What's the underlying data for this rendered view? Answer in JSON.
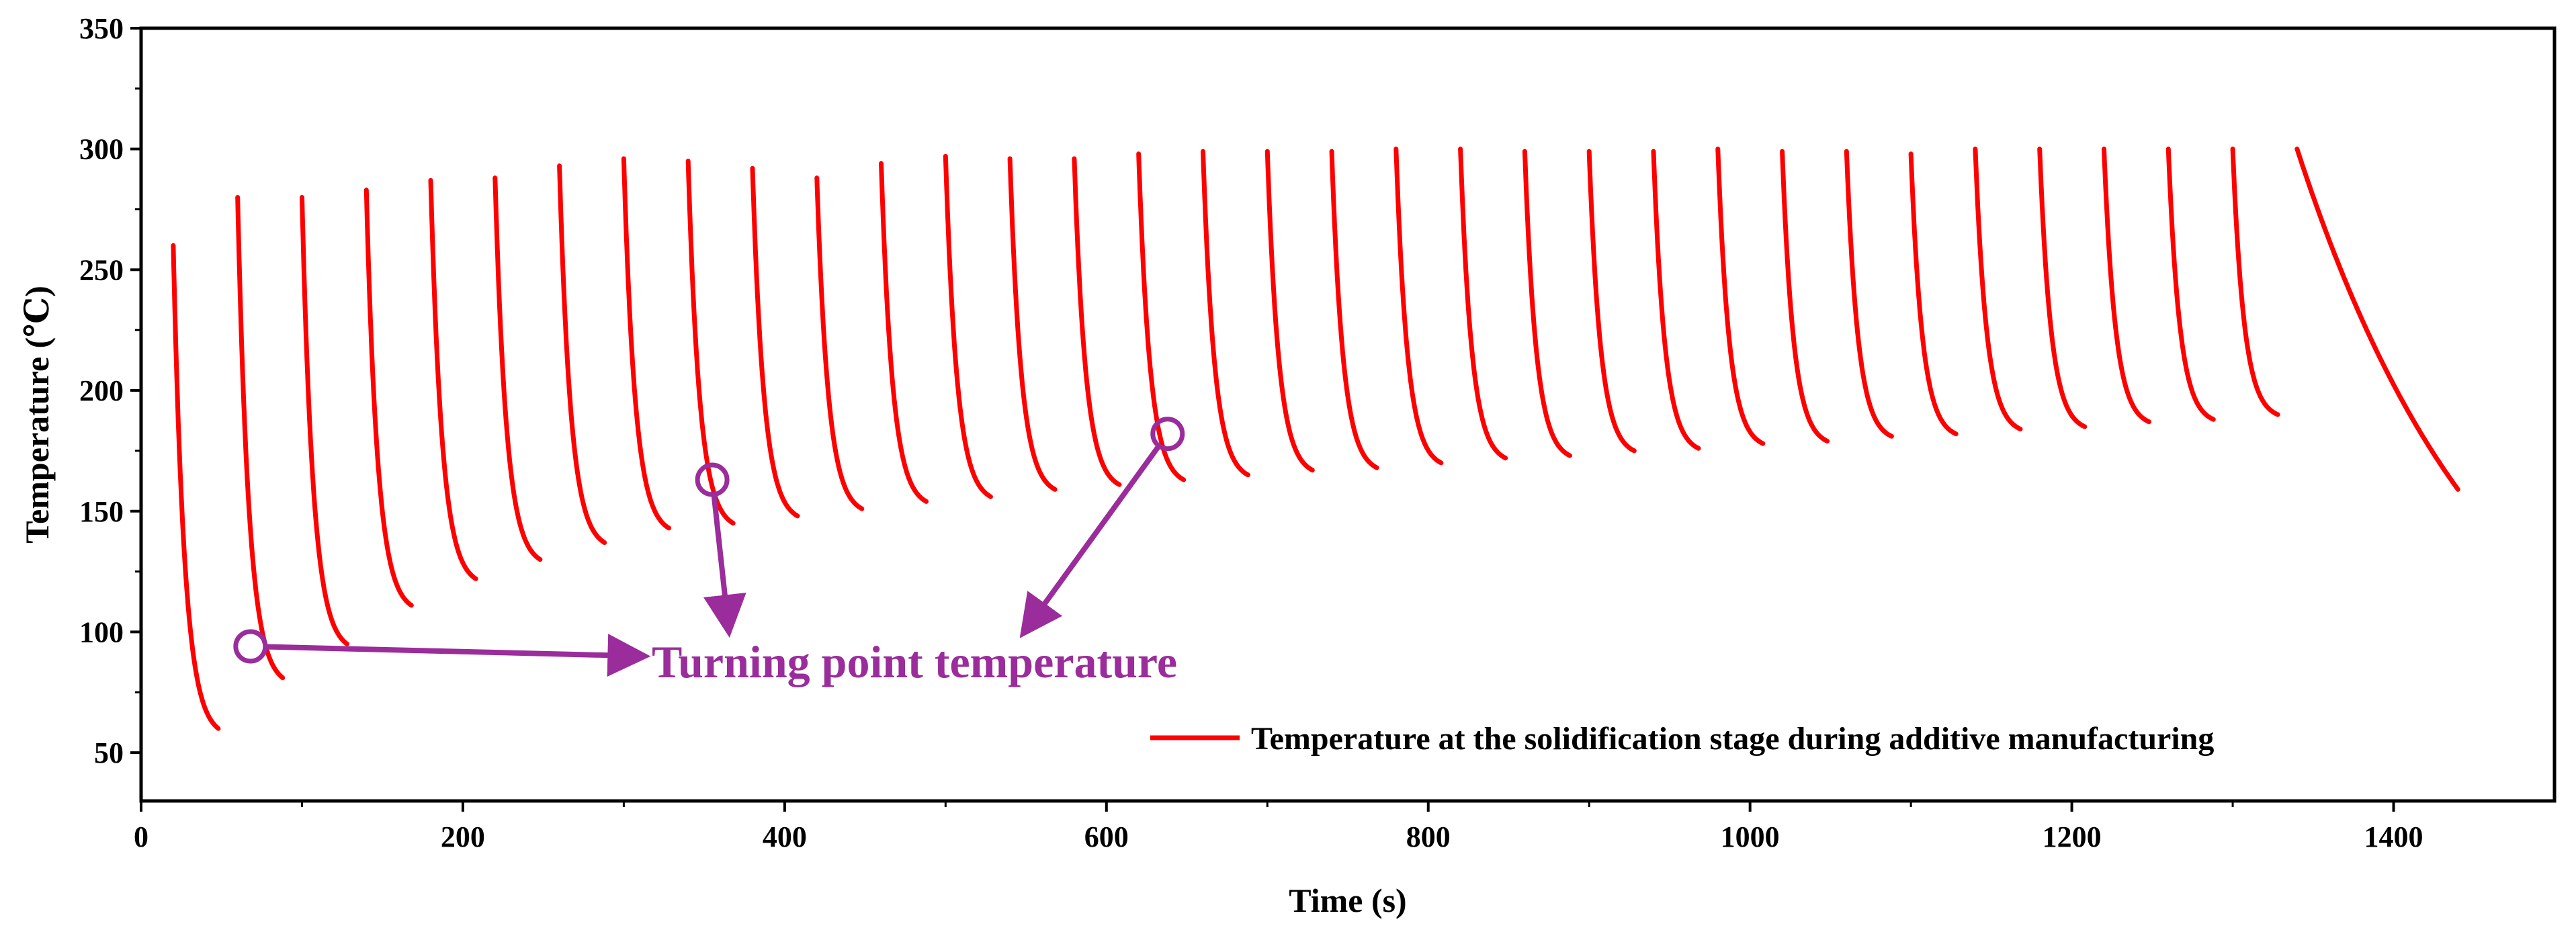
{
  "chart_data": {
    "type": "line",
    "title": "",
    "xlabel": "Time (s)",
    "ylabel": "Temperature (℃)",
    "xlim": [
      0,
      1500
    ],
    "ylim": [
      30,
      350
    ],
    "xticks": [
      0,
      200,
      400,
      600,
      800,
      1000,
      1200,
      1400
    ],
    "yticks": [
      50,
      100,
      150,
      200,
      250,
      300,
      350
    ],
    "grid": false,
    "legend": {
      "position": "bottom-right",
      "entries": [
        "Temperature at the solidification stage during additive manufacturing"
      ]
    },
    "colors": {
      "series": "#ff0000",
      "annotation": "#9b2c9b",
      "axis": "#000000"
    },
    "series": [
      {
        "name": "Temperature at the solidification stage during additive manufacturing",
        "segments": [
          {
            "t0": 20,
            "peak": 260,
            "end_t": 48,
            "end_temp": 60
          },
          {
            "t0": 60,
            "peak": 280,
            "end_t": 88,
            "end_temp": 81
          },
          {
            "t0": 100,
            "peak": 280,
            "end_t": 128,
            "end_temp": 95
          },
          {
            "t0": 140,
            "peak": 283,
            "end_t": 168,
            "end_temp": 111
          },
          {
            "t0": 180,
            "peak": 287,
            "end_t": 208,
            "end_temp": 122
          },
          {
            "t0": 220,
            "peak": 288,
            "end_t": 248,
            "end_temp": 130
          },
          {
            "t0": 260,
            "peak": 293,
            "end_t": 288,
            "end_temp": 137
          },
          {
            "t0": 300,
            "peak": 296,
            "end_t": 328,
            "end_temp": 143
          },
          {
            "t0": 340,
            "peak": 295,
            "end_t": 368,
            "end_temp": 145
          },
          {
            "t0": 380,
            "peak": 292,
            "end_t": 408,
            "end_temp": 148
          },
          {
            "t0": 420,
            "peak": 288,
            "end_t": 448,
            "end_temp": 151
          },
          {
            "t0": 460,
            "peak": 294,
            "end_t": 488,
            "end_temp": 154
          },
          {
            "t0": 500,
            "peak": 297,
            "end_t": 528,
            "end_temp": 156
          },
          {
            "t0": 540,
            "peak": 296,
            "end_t": 568,
            "end_temp": 159
          },
          {
            "t0": 580,
            "peak": 296,
            "end_t": 608,
            "end_temp": 161
          },
          {
            "t0": 620,
            "peak": 298,
            "end_t": 648,
            "end_temp": 163
          },
          {
            "t0": 660,
            "peak": 299,
            "end_t": 688,
            "end_temp": 165
          },
          {
            "t0": 700,
            "peak": 299,
            "end_t": 728,
            "end_temp": 167
          },
          {
            "t0": 740,
            "peak": 299,
            "end_t": 768,
            "end_temp": 168
          },
          {
            "t0": 780,
            "peak": 300,
            "end_t": 808,
            "end_temp": 170
          },
          {
            "t0": 820,
            "peak": 300,
            "end_t": 848,
            "end_temp": 172
          },
          {
            "t0": 860,
            "peak": 299,
            "end_t": 888,
            "end_temp": 173
          },
          {
            "t0": 900,
            "peak": 299,
            "end_t": 928,
            "end_temp": 175
          },
          {
            "t0": 940,
            "peak": 299,
            "end_t": 968,
            "end_temp": 176
          },
          {
            "t0": 980,
            "peak": 300,
            "end_t": 1008,
            "end_temp": 178
          },
          {
            "t0": 1020,
            "peak": 299,
            "end_t": 1048,
            "end_temp": 179
          },
          {
            "t0": 1060,
            "peak": 299,
            "end_t": 1088,
            "end_temp": 181
          },
          {
            "t0": 1100,
            "peak": 298,
            "end_t": 1128,
            "end_temp": 182
          },
          {
            "t0": 1140,
            "peak": 300,
            "end_t": 1168,
            "end_temp": 184
          },
          {
            "t0": 1180,
            "peak": 300,
            "end_t": 1208,
            "end_temp": 185
          },
          {
            "t0": 1220,
            "peak": 300,
            "end_t": 1248,
            "end_temp": 187
          },
          {
            "t0": 1260,
            "peak": 300,
            "end_t": 1288,
            "end_temp": 188
          },
          {
            "t0": 1300,
            "peak": 300,
            "end_t": 1328,
            "end_temp": 190
          },
          {
            "t0": 1340,
            "peak": 300,
            "end_t": 1440,
            "end_temp": 159
          }
        ]
      }
    ],
    "annotations": [
      {
        "text": "Turning point temperature",
        "text_anchor_data": [
          320,
          91
        ],
        "markers": [
          {
            "at": [
              68,
              94
            ],
            "arrow_to": [
              310,
              90
            ]
          },
          {
            "at": [
              355,
              163
            ],
            "arrow_to": [
              365,
              102
            ]
          },
          {
            "at": [
              638,
              182
            ],
            "arrow_to": [
              550,
              101
            ]
          }
        ]
      }
    ]
  }
}
